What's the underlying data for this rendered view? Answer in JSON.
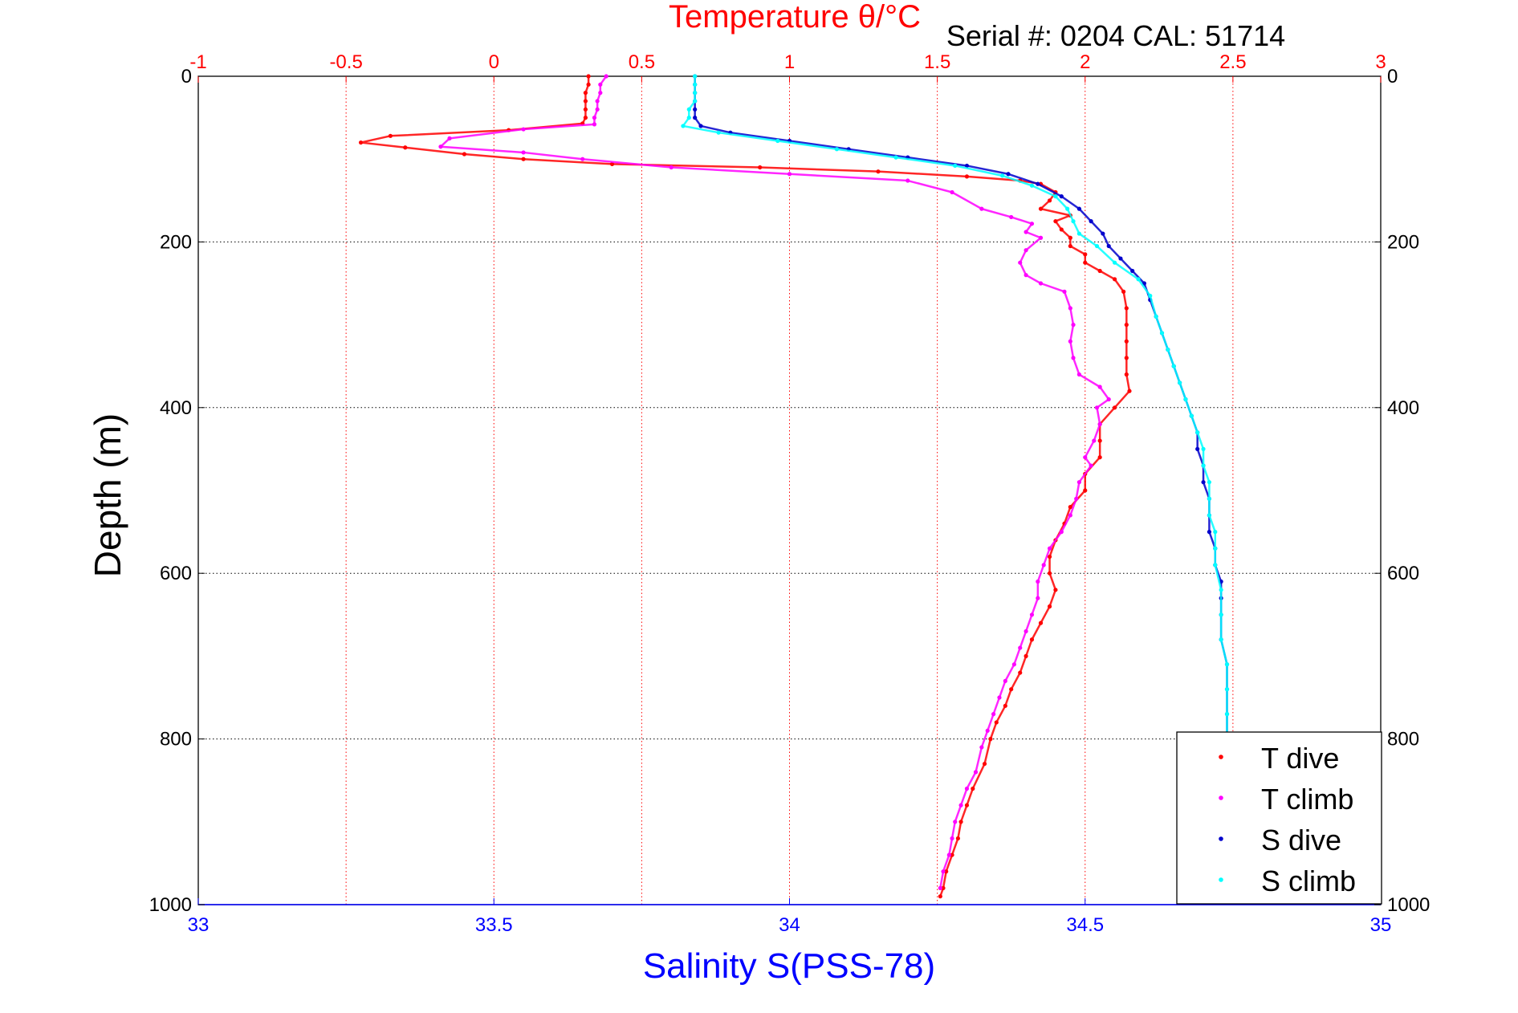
{
  "chart_data": {
    "type": "scatter",
    "title": "Temperature θ/°C",
    "subtitle": "Serial #: 0204   CAL: 51714",
    "ylabel": "Depth (m)",
    "xlabel": "Salinity S(PSS-78)",
    "ylim": [
      0,
      1000
    ],
    "y_reversed": true,
    "y_ticks": [
      "0",
      "200",
      "400",
      "600",
      "800",
      "1000"
    ],
    "temperature_axis": {
      "position": "top",
      "range": [
        -1,
        3
      ],
      "ticks": [
        "-1",
        "-0.5",
        "0",
        "0.5",
        "1",
        "1.5",
        "2",
        "2.5",
        "3"
      ],
      "color": "#ff0000"
    },
    "salinity_axis": {
      "position": "bottom",
      "range": [
        33,
        35
      ],
      "ticks": [
        "33",
        "33.5",
        "34",
        "34.5",
        "35"
      ],
      "color": "#0000ff"
    },
    "grid": true,
    "legend": {
      "placement": "bottom-right"
    },
    "series": [
      {
        "name": "T dive",
        "axis": "temperature",
        "color": "#ff0000",
        "points": [
          [
            0.32,
            0
          ],
          [
            0.32,
            10
          ],
          [
            0.31,
            20
          ],
          [
            0.31,
            30
          ],
          [
            0.31,
            40
          ],
          [
            0.31,
            50
          ],
          [
            0.3,
            57
          ],
          [
            0.05,
            65
          ],
          [
            -0.35,
            72
          ],
          [
            -0.45,
            80
          ],
          [
            -0.3,
            86
          ],
          [
            -0.1,
            94
          ],
          [
            0.1,
            100
          ],
          [
            0.4,
            106
          ],
          [
            0.9,
            110
          ],
          [
            1.3,
            115
          ],
          [
            1.6,
            121
          ],
          [
            1.78,
            126
          ],
          [
            1.85,
            130
          ],
          [
            1.9,
            140
          ],
          [
            1.88,
            150
          ],
          [
            1.85,
            160
          ],
          [
            1.95,
            168
          ],
          [
            1.9,
            175
          ],
          [
            1.92,
            185
          ],
          [
            1.95,
            195
          ],
          [
            1.95,
            205
          ],
          [
            2.0,
            215
          ],
          [
            2.0,
            225
          ],
          [
            2.05,
            235
          ],
          [
            2.1,
            245
          ],
          [
            2.13,
            260
          ],
          [
            2.14,
            280
          ],
          [
            2.14,
            300
          ],
          [
            2.14,
            320
          ],
          [
            2.14,
            340
          ],
          [
            2.14,
            360
          ],
          [
            2.15,
            380
          ],
          [
            2.1,
            400
          ],
          [
            2.05,
            420
          ],
          [
            2.05,
            440
          ],
          [
            2.05,
            460
          ],
          [
            2.0,
            480
          ],
          [
            2.0,
            500
          ],
          [
            1.95,
            520
          ],
          [
            1.93,
            540
          ],
          [
            1.9,
            560
          ],
          [
            1.88,
            580
          ],
          [
            1.88,
            600
          ],
          [
            1.9,
            620
          ],
          [
            1.88,
            640
          ],
          [
            1.85,
            660
          ],
          [
            1.82,
            680
          ],
          [
            1.8,
            700
          ],
          [
            1.78,
            720
          ],
          [
            1.75,
            740
          ],
          [
            1.73,
            760
          ],
          [
            1.7,
            780
          ],
          [
            1.68,
            800
          ],
          [
            1.66,
            830
          ],
          [
            1.62,
            860
          ],
          [
            1.6,
            880
          ],
          [
            1.58,
            900
          ],
          [
            1.57,
            920
          ],
          [
            1.55,
            940
          ],
          [
            1.53,
            960
          ],
          [
            1.52,
            980
          ],
          [
            1.51,
            990
          ]
        ]
      },
      {
        "name": "T climb",
        "axis": "temperature",
        "color": "#ff00ff",
        "points": [
          [
            0.38,
            0
          ],
          [
            0.36,
            10
          ],
          [
            0.36,
            20
          ],
          [
            0.35,
            30
          ],
          [
            0.35,
            40
          ],
          [
            0.34,
            50
          ],
          [
            0.34,
            58
          ],
          [
            0.1,
            64
          ],
          [
            -0.15,
            75
          ],
          [
            -0.18,
            85
          ],
          [
            0.1,
            92
          ],
          [
            0.3,
            100
          ],
          [
            0.6,
            110
          ],
          [
            1.0,
            118
          ],
          [
            1.4,
            126
          ],
          [
            1.55,
            140
          ],
          [
            1.65,
            160
          ],
          [
            1.75,
            170
          ],
          [
            1.82,
            178
          ],
          [
            1.8,
            188
          ],
          [
            1.85,
            195
          ],
          [
            1.8,
            210
          ],
          [
            1.78,
            225
          ],
          [
            1.8,
            240
          ],
          [
            1.85,
            250
          ],
          [
            1.93,
            260
          ],
          [
            1.95,
            280
          ],
          [
            1.96,
            300
          ],
          [
            1.95,
            320
          ],
          [
            1.96,
            340
          ],
          [
            1.98,
            360
          ],
          [
            2.05,
            375
          ],
          [
            2.08,
            390
          ],
          [
            2.04,
            400
          ],
          [
            2.05,
            420
          ],
          [
            2.03,
            440
          ],
          [
            2.0,
            460
          ],
          [
            2.02,
            470
          ],
          [
            1.98,
            490
          ],
          [
            1.97,
            510
          ],
          [
            1.95,
            530
          ],
          [
            1.92,
            550
          ],
          [
            1.88,
            570
          ],
          [
            1.86,
            590
          ],
          [
            1.84,
            610
          ],
          [
            1.84,
            630
          ],
          [
            1.82,
            650
          ],
          [
            1.8,
            670
          ],
          [
            1.78,
            690
          ],
          [
            1.76,
            710
          ],
          [
            1.73,
            730
          ],
          [
            1.71,
            750
          ],
          [
            1.69,
            770
          ],
          [
            1.67,
            790
          ],
          [
            1.65,
            810
          ],
          [
            1.63,
            840
          ],
          [
            1.6,
            860
          ],
          [
            1.58,
            880
          ],
          [
            1.56,
            900
          ],
          [
            1.55,
            920
          ],
          [
            1.54,
            940
          ],
          [
            1.52,
            960
          ],
          [
            1.51,
            980
          ]
        ]
      },
      {
        "name": "S dive",
        "axis": "salinity",
        "color": "#0000cc",
        "points": [
          [
            33.84,
            0
          ],
          [
            33.84,
            10
          ],
          [
            33.84,
            20
          ],
          [
            33.84,
            30
          ],
          [
            33.84,
            40
          ],
          [
            33.84,
            50
          ],
          [
            33.85,
            60
          ],
          [
            33.9,
            68
          ],
          [
            34.0,
            78
          ],
          [
            34.1,
            88
          ],
          [
            34.2,
            98
          ],
          [
            34.3,
            108
          ],
          [
            34.37,
            118
          ],
          [
            34.42,
            130
          ],
          [
            34.46,
            145
          ],
          [
            34.49,
            160
          ],
          [
            34.51,
            175
          ],
          [
            34.53,
            190
          ],
          [
            34.54,
            205
          ],
          [
            34.56,
            220
          ],
          [
            34.58,
            235
          ],
          [
            34.6,
            250
          ],
          [
            34.61,
            270
          ],
          [
            34.62,
            290
          ],
          [
            34.63,
            310
          ],
          [
            34.64,
            330
          ],
          [
            34.65,
            350
          ],
          [
            34.66,
            370
          ],
          [
            34.67,
            390
          ],
          [
            34.68,
            410
          ],
          [
            34.69,
            430
          ],
          [
            34.69,
            450
          ],
          [
            34.7,
            470
          ],
          [
            34.7,
            490
          ],
          [
            34.71,
            510
          ],
          [
            34.71,
            530
          ],
          [
            34.71,
            550
          ],
          [
            34.72,
            570
          ],
          [
            34.72,
            590
          ],
          [
            34.73,
            610
          ],
          [
            34.73,
            630
          ],
          [
            34.73,
            650
          ],
          [
            34.73,
            680
          ],
          [
            34.74,
            710
          ],
          [
            34.74,
            740
          ],
          [
            34.74,
            770
          ],
          [
            34.74,
            800
          ]
        ]
      },
      {
        "name": "S climb",
        "axis": "salinity",
        "color": "#00ffff",
        "points": [
          [
            33.84,
            0
          ],
          [
            33.84,
            10
          ],
          [
            33.84,
            20
          ],
          [
            33.84,
            30
          ],
          [
            33.83,
            40
          ],
          [
            33.83,
            50
          ],
          [
            33.82,
            60
          ],
          [
            33.88,
            68
          ],
          [
            33.98,
            78
          ],
          [
            34.08,
            88
          ],
          [
            34.18,
            98
          ],
          [
            34.28,
            108
          ],
          [
            34.36,
            120
          ],
          [
            34.41,
            132
          ],
          [
            34.45,
            145
          ],
          [
            34.47,
            160
          ],
          [
            34.48,
            175
          ],
          [
            34.49,
            190
          ],
          [
            34.52,
            205
          ],
          [
            34.55,
            225
          ],
          [
            34.59,
            245
          ],
          [
            34.61,
            265
          ],
          [
            34.62,
            290
          ],
          [
            34.63,
            310
          ],
          [
            34.64,
            330
          ],
          [
            34.65,
            350
          ],
          [
            34.66,
            370
          ],
          [
            34.67,
            390
          ],
          [
            34.68,
            410
          ],
          [
            34.69,
            430
          ],
          [
            34.7,
            450
          ],
          [
            34.7,
            470
          ],
          [
            34.71,
            490
          ],
          [
            34.71,
            510
          ],
          [
            34.71,
            530
          ],
          [
            34.72,
            550
          ],
          [
            34.72,
            570
          ],
          [
            34.72,
            590
          ],
          [
            34.73,
            620
          ],
          [
            34.73,
            650
          ],
          [
            34.73,
            680
          ],
          [
            34.74,
            710
          ],
          [
            34.74,
            740
          ],
          [
            34.74,
            770
          ],
          [
            34.74,
            800
          ],
          [
            34.74,
            830
          ],
          [
            34.74,
            860
          ],
          [
            34.74,
            890
          ],
          [
            34.74,
            920
          ],
          [
            34.74,
            950
          ],
          [
            34.74,
            980
          ],
          [
            34.74,
            995
          ]
        ]
      }
    ]
  }
}
